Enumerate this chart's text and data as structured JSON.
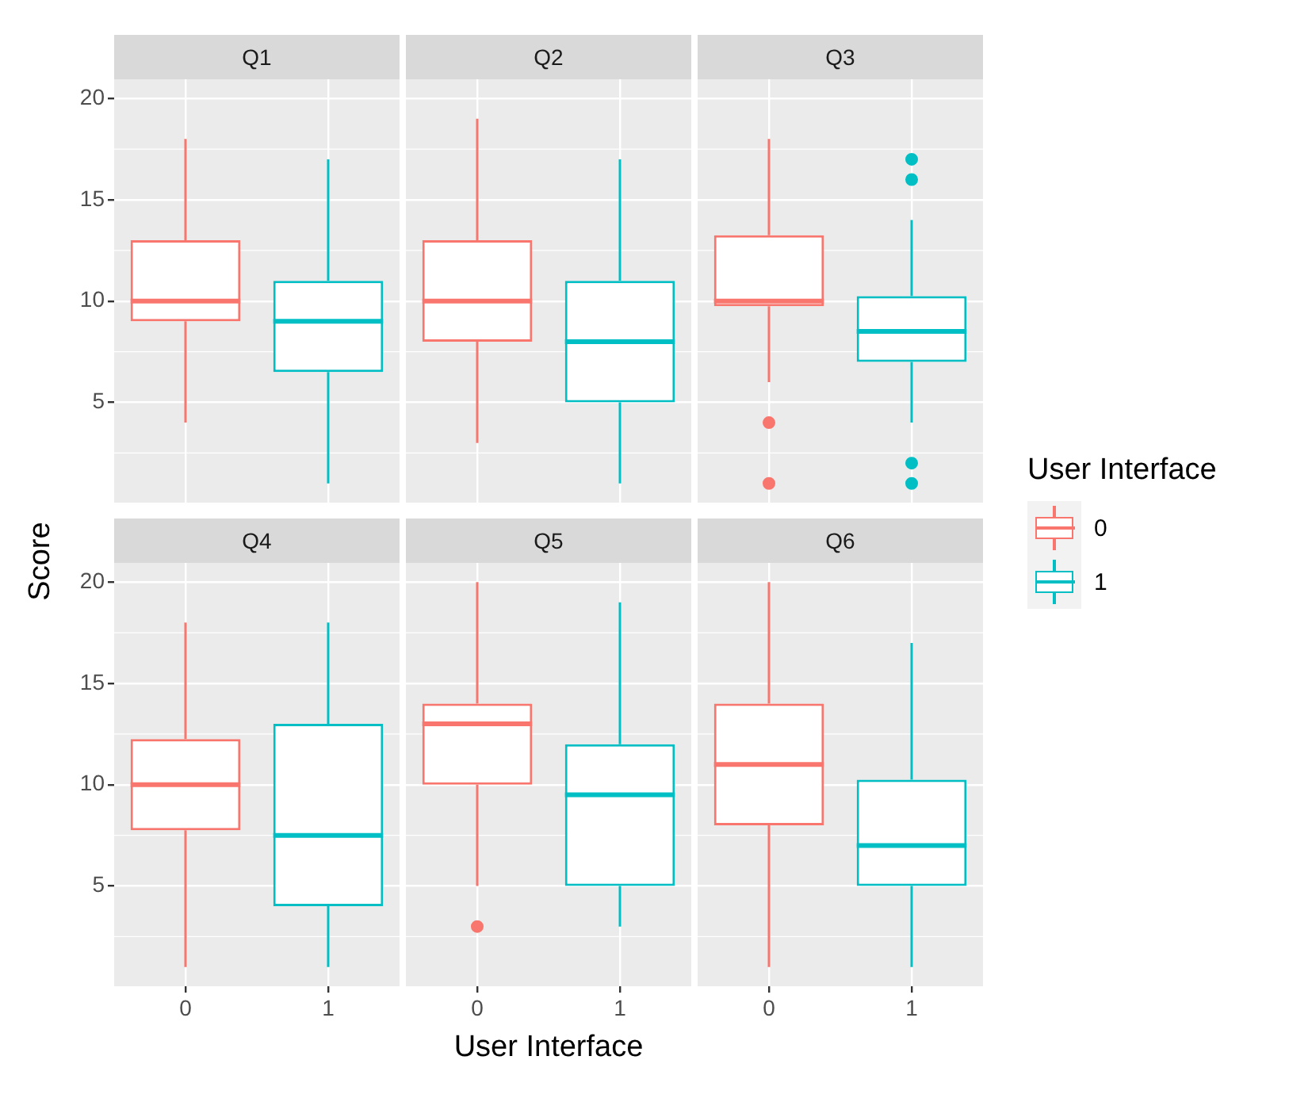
{
  "chart_data": [
    {
      "type": "box",
      "title": "Q1",
      "ylabel": "Score",
      "legend_title": "User Interface",
      "legend": "right",
      "categories": [
        "0",
        "1"
      ],
      "ylim": [
        0.05,
        20.95
      ],
      "yticks": [
        5,
        10,
        15,
        20
      ],
      "grid": true,
      "tick_labels": "y",
      "series": [
        {
          "name": "0",
          "color": "#f8766d",
          "boxes": [
            {
              "low": 4,
              "q1": 9,
              "median": 10,
              "q3": 13,
              "high": 18
            },
            null
          ]
        },
        {
          "name": "1",
          "color": "#00bfc4",
          "boxes": [
            null,
            {
              "low": 1,
              "q1": 6.5,
              "median": 9,
              "q3": 11,
              "high": 17
            }
          ]
        }
      ]
    },
    {
      "type": "box",
      "title": "Q2",
      "categories": [
        "0",
        "1"
      ],
      "ylim": [
        0.05,
        20.95
      ],
      "yticks": [
        5,
        10,
        15,
        20
      ],
      "grid": true,
      "tick_labels": false,
      "series": [
        {
          "name": "0",
          "color": "#f8766d",
          "boxes": [
            {
              "low": 3,
              "q1": 8,
              "median": 10,
              "q3": 13,
              "high": 19
            },
            null
          ]
        },
        {
          "name": "1",
          "color": "#00bfc4",
          "boxes": [
            null,
            {
              "low": 1,
              "q1": 5,
              "median": 8,
              "q3": 11,
              "high": 17
            }
          ]
        }
      ]
    },
    {
      "type": "box",
      "title": "Q3",
      "categories": [
        "0",
        "1"
      ],
      "ylim": [
        0.05,
        20.95
      ],
      "yticks": [
        5,
        10,
        15,
        20
      ],
      "grid": true,
      "tick_labels": false,
      "series": [
        {
          "name": "0",
          "color": "#f8766d",
          "boxes": [
            {
              "low": 6,
              "q1": 9.75,
              "median": 10,
              "q3": 13.25,
              "high": 18,
              "outliers": [
                4,
                1
              ]
            },
            null
          ]
        },
        {
          "name": "1",
          "color": "#00bfc4",
          "boxes": [
            null,
            {
              "low": 4,
              "q1": 7,
              "median": 8.5,
              "q3": 10.25,
              "high": 14,
              "outliers": [
                17,
                16,
                2,
                1
              ]
            }
          ]
        }
      ]
    },
    {
      "type": "box",
      "title": "Q4",
      "categories": [
        "0",
        "1"
      ],
      "ylim": [
        0.05,
        20.95
      ],
      "yticks": [
        5,
        10,
        15,
        20
      ],
      "grid": true,
      "series": [
        {
          "name": "0",
          "color": "#f8766d",
          "boxes": [
            {
              "low": 1,
              "q1": 7.75,
              "median": 10,
              "q3": 12.25,
              "high": 18
            },
            null
          ]
        },
        {
          "name": "1",
          "color": "#00bfc4",
          "boxes": [
            null,
            {
              "low": 1,
              "q1": 4,
              "median": 7.5,
              "q3": 13,
              "high": 18
            }
          ]
        }
      ]
    },
    {
      "type": "box",
      "title": "Q5",
      "xlabel": "User Interface",
      "categories": [
        "0",
        "1"
      ],
      "ylim": [
        0.05,
        20.95
      ],
      "yticks": [
        5,
        10,
        15,
        20
      ],
      "grid": true,
      "tick_labels": "x",
      "series": [
        {
          "name": "0",
          "color": "#f8766d",
          "boxes": [
            {
              "low": 5,
              "q1": 10,
              "median": 13,
              "q3": 14,
              "high": 20,
              "outliers": [
                3
              ]
            },
            null
          ]
        },
        {
          "name": "1",
          "color": "#00bfc4",
          "boxes": [
            null,
            {
              "low": 3,
              "q1": 5,
              "median": 9.5,
              "q3": 12,
              "high": 19
            }
          ]
        }
      ]
    },
    {
      "type": "box",
      "title": "Q6",
      "categories": [
        "0",
        "1"
      ],
      "ylim": [
        0.05,
        20.95
      ],
      "yticks": [
        5,
        10,
        15,
        20
      ],
      "grid": true,
      "tick_labels": "x",
      "series": [
        {
          "name": "0",
          "color": "#f8766d",
          "boxes": [
            {
              "low": 1,
              "q1": 8,
              "median": 11,
              "q3": 14,
              "high": 20
            },
            null
          ]
        },
        {
          "name": "1",
          "color": "#00bfc4",
          "boxes": [
            null,
            {
              "low": 1,
              "q1": 5,
              "median": 7,
              "q3": 10.25,
              "high": 17
            }
          ]
        }
      ]
    }
  ]
}
